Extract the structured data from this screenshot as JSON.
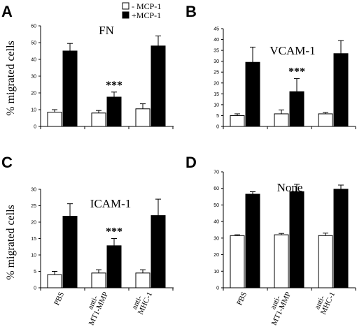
{
  "ylabel": "% migrated cells",
  "legend": [
    {
      "label": "- MCP-1",
      "color": "#ffffff"
    },
    {
      "label": "+MCP-1",
      "color": "#000000"
    }
  ],
  "chart_data": [
    {
      "type": "bar",
      "panel": "A",
      "title": "FN",
      "categories": [
        "",
        "",
        ""
      ],
      "ylim": [
        0,
        60
      ],
      "yticks": [
        0,
        10,
        20,
        30,
        40,
        50,
        60
      ],
      "series": [
        {
          "name": "- MCP-1",
          "values": [
            8.5,
            8,
            10.5
          ],
          "errors": [
            1.5,
            1.5,
            3
          ]
        },
        {
          "name": "+MCP-1",
          "values": [
            45,
            17.5,
            48
          ],
          "errors": [
            4.5,
            3,
            6
          ]
        }
      ],
      "annotations": [
        {
          "category_index": 1,
          "text": "***"
        }
      ]
    },
    {
      "type": "bar",
      "panel": "B",
      "title": "VCAM-1",
      "categories": [
        "",
        "",
        ""
      ],
      "ylim": [
        0,
        45
      ],
      "yticks": [
        0,
        5,
        10,
        15,
        20,
        25,
        30,
        35,
        40,
        45
      ],
      "series": [
        {
          "name": "- MCP-1",
          "values": [
            5,
            5.8,
            5.8
          ],
          "errors": [
            0.8,
            1.8,
            0.6
          ]
        },
        {
          "name": "+MCP-1",
          "values": [
            29.5,
            16,
            33.5
          ],
          "errors": [
            7,
            6,
            6
          ]
        }
      ],
      "annotations": [
        {
          "category_index": 1,
          "text": "***"
        }
      ]
    },
    {
      "type": "bar",
      "panel": "C",
      "title": "ICAM-1",
      "categories": [
        "PBS",
        "anti-MT1-MMP",
        "anti-MHC-1"
      ],
      "ylim": [
        0,
        30
      ],
      "yticks": [
        0,
        5,
        10,
        15,
        20,
        25,
        30
      ],
      "series": [
        {
          "name": "- MCP-1",
          "values": [
            4,
            4.5,
            4.5
          ],
          "errors": [
            1,
            1,
            1
          ]
        },
        {
          "name": "+MCP-1",
          "values": [
            21.8,
            12.8,
            22
          ],
          "errors": [
            3.8,
            2.2,
            5
          ]
        }
      ],
      "annotations": [
        {
          "category_index": 1,
          "text": "***"
        }
      ]
    },
    {
      "type": "bar",
      "panel": "D",
      "title": "None",
      "categories": [
        "PBS",
        "anti-MT1-MMP",
        "anti-MHC-1"
      ],
      "ylim": [
        0,
        70
      ],
      "yticks": [
        0,
        10,
        20,
        30,
        40,
        50,
        60,
        70
      ],
      "series": [
        {
          "name": "- MCP-1",
          "values": [
            31.5,
            32,
            31.5
          ],
          "errors": [
            0.5,
            0.8,
            1.5
          ]
        },
        {
          "name": "+MCP-1",
          "values": [
            56.5,
            58,
            59.5
          ],
          "errors": [
            1.5,
            4.5,
            2.5
          ]
        }
      ],
      "annotations": []
    }
  ]
}
